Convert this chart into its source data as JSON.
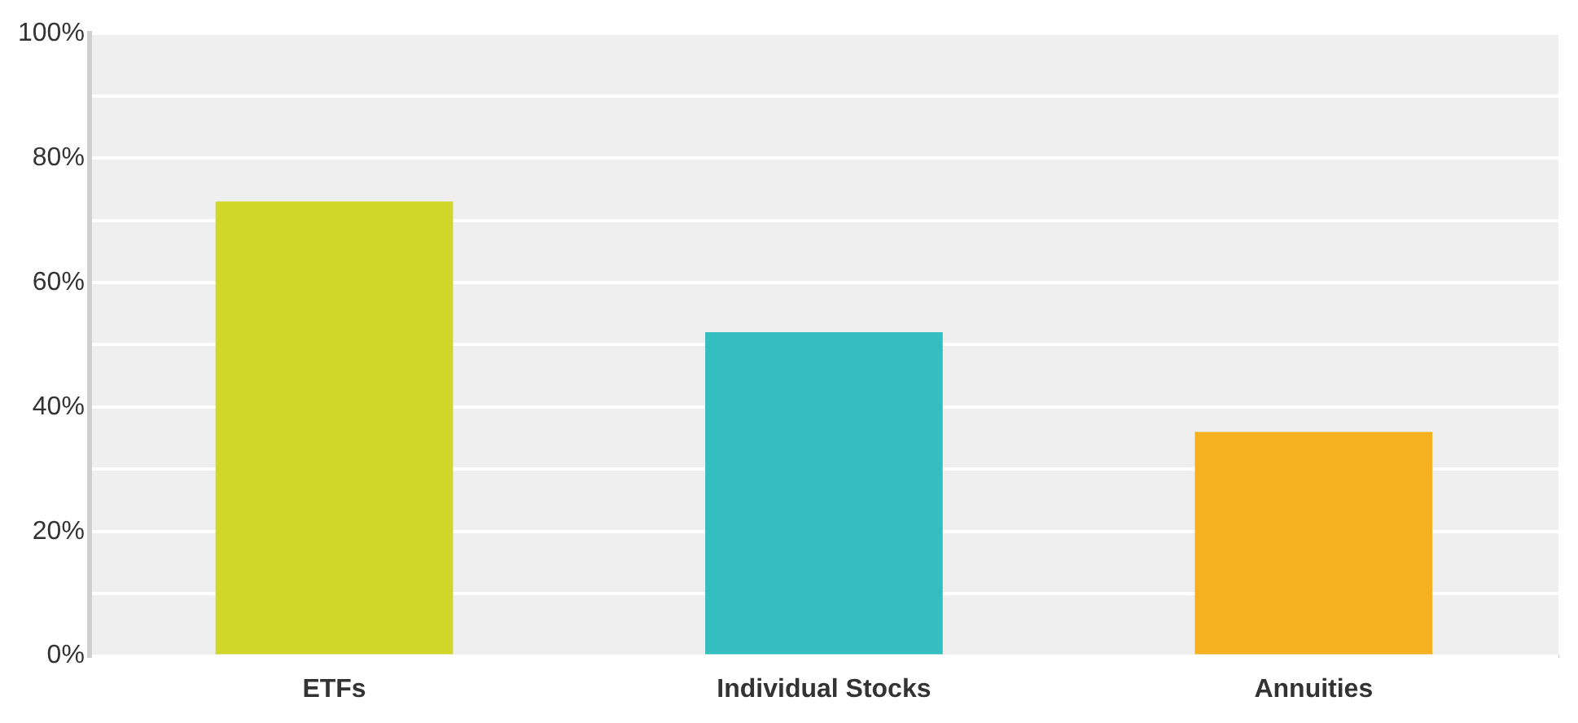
{
  "chart_data": {
    "type": "bar",
    "categories": [
      "ETFs",
      "Individual Stocks",
      "Annuities"
    ],
    "values": [
      73,
      52,
      36
    ],
    "colors": [
      "#d0d62a",
      "#35bec0",
      "#f6b121"
    ],
    "ylim": [
      0,
      100
    ],
    "yticks": [
      {
        "value": 0,
        "label": "0%"
      },
      {
        "value": 10,
        "label": null
      },
      {
        "value": 20,
        "label": "20%"
      },
      {
        "value": 30,
        "label": null
      },
      {
        "value": 40,
        "label": "40%"
      },
      {
        "value": 50,
        "label": null
      },
      {
        "value": 60,
        "label": "60%"
      },
      {
        "value": 70,
        "label": null
      },
      {
        "value": 80,
        "label": "80%"
      },
      {
        "value": 90,
        "label": null
      },
      {
        "value": 100,
        "label": "100%"
      }
    ],
    "grid": true
  }
}
